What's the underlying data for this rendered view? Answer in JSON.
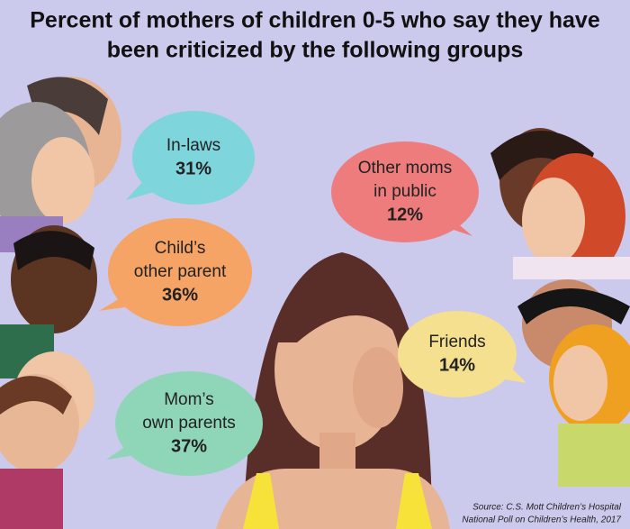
{
  "title": [
    "Percent of mothers of children 0-5 who say they have",
    "been criticized by the following groups"
  ],
  "bubbles": [
    {
      "label": [
        "In-laws"
      ],
      "value": "31%"
    },
    {
      "label": [
        "Other moms",
        "in public"
      ],
      "value": "12%"
    },
    {
      "label": [
        "Child’s",
        "other parent"
      ],
      "value": "36%"
    },
    {
      "label": [
        "Friends"
      ],
      "value": "14%"
    },
    {
      "label": [
        "Mom’s",
        "own parents"
      ],
      "value": "37%"
    }
  ],
  "source": [
    "Source: C.S. Mott Children’s Hospital",
    "National Poll on Children’s Health, 2017"
  ]
}
